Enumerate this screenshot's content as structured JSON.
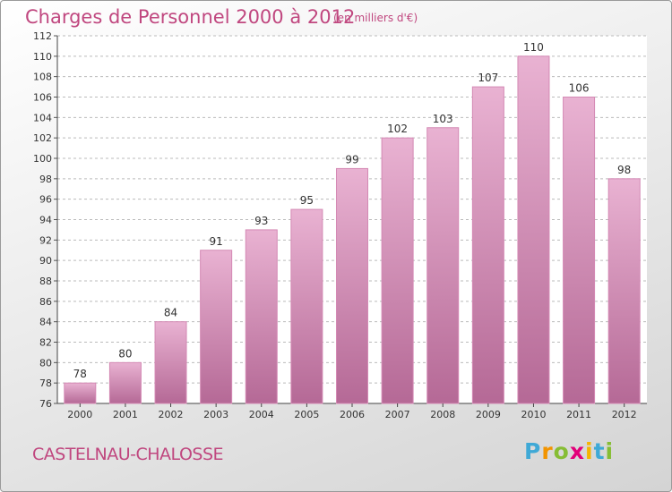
{
  "title": "Charges de Personnel 2000 à 2012",
  "subtitle": "(en milliers d'€)",
  "city": "CASTELNAU-CHALOSSE",
  "logo": {
    "letters": [
      "P",
      "r",
      "o",
      "x",
      "i",
      "t",
      "i"
    ],
    "colors": [
      "#3fa9d6",
      "#f29400",
      "#86bd34",
      "#e2007a",
      "#f5b400",
      "#3fa9d6",
      "#86bd34"
    ]
  },
  "colors": {
    "bar_top": "#e9b2d2",
    "bar_bottom": "#b56996",
    "bar_stroke": "#d489b4",
    "text": "#c0477f",
    "grid": "#bbbbbb",
    "plot_bg": "#ffffff"
  },
  "chart_data": {
    "type": "bar",
    "title": "Charges de Personnel 2000 à 2012",
    "subtitle": "(en milliers d'€)",
    "categories": [
      "2000",
      "2001",
      "2002",
      "2003",
      "2004",
      "2005",
      "2006",
      "2007",
      "2008",
      "2009",
      "2010",
      "2011",
      "2012"
    ],
    "values": [
      78,
      80,
      84,
      91,
      93,
      95,
      99,
      102,
      103,
      107,
      110,
      106,
      98
    ],
    "ylim": [
      76,
      112
    ],
    "yticks": [
      76,
      78,
      80,
      82,
      84,
      86,
      88,
      90,
      92,
      94,
      96,
      98,
      100,
      102,
      104,
      106,
      108,
      110,
      112
    ],
    "grid": true,
    "data_labels": true
  }
}
